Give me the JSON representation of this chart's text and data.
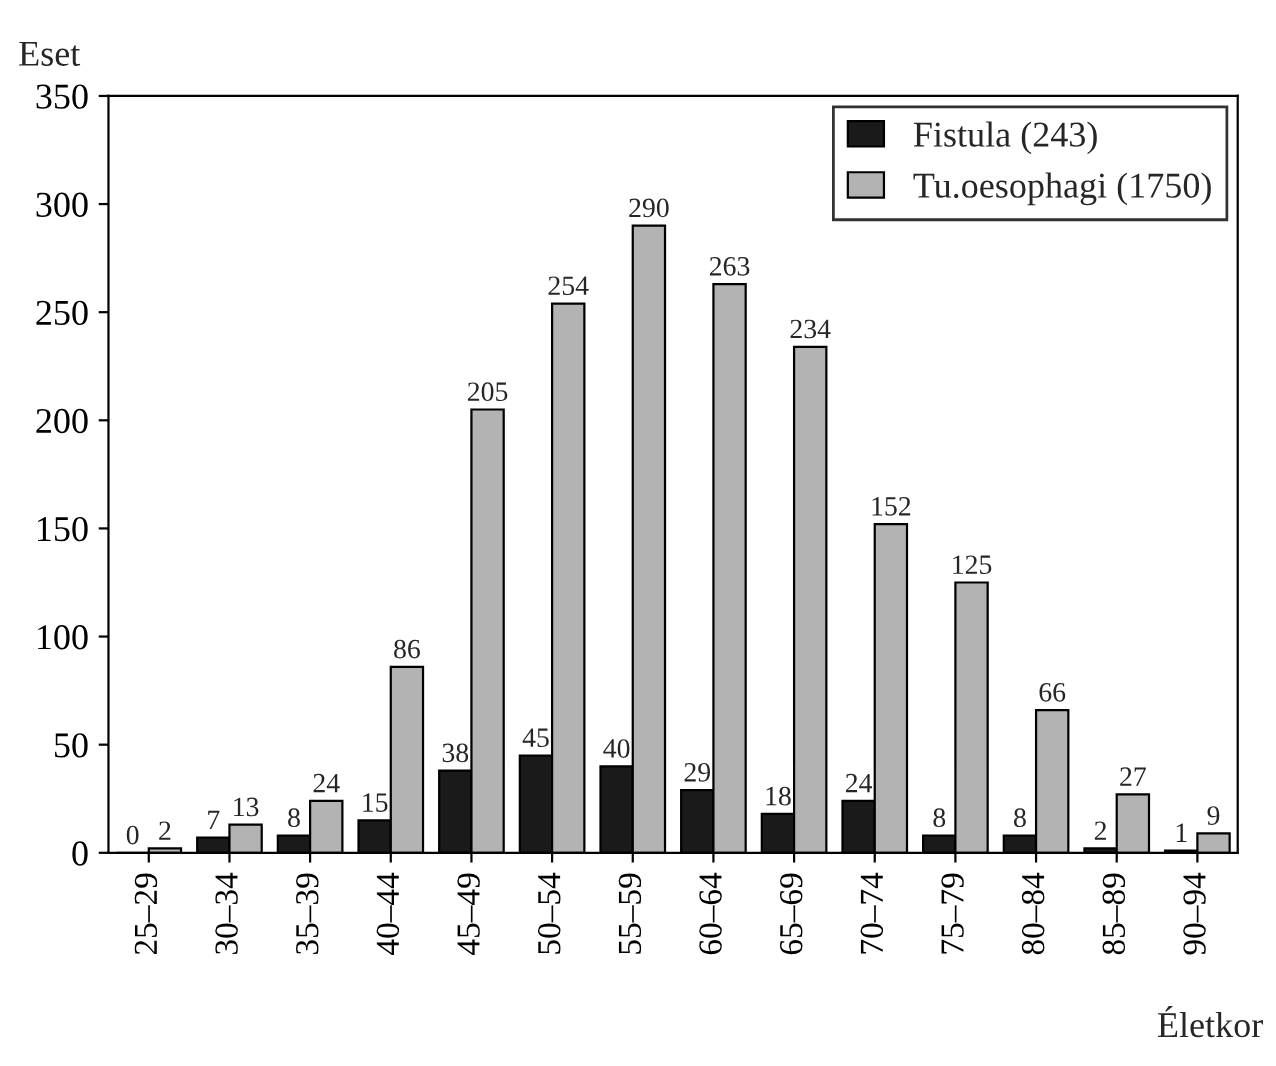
{
  "chart_data": {
    "type": "bar",
    "xlabel": "Életkor",
    "ylabel": "Eset",
    "categories": [
      "25–29",
      "30–34",
      "35–39",
      "40–44",
      "45–49",
      "50–54",
      "55–59",
      "60–64",
      "65–69",
      "70–74",
      "75–79",
      "80–84",
      "85–89",
      "90–94"
    ],
    "series": [
      {
        "name": "Fistula (243)",
        "color": "#1a1a1a",
        "values": [
          0,
          7,
          8,
          15,
          38,
          45,
          40,
          29,
          18,
          24,
          8,
          8,
          2,
          1
        ]
      },
      {
        "name": "Tu.oesophagi (1750)",
        "color": "#b3b3b3",
        "values": [
          2,
          13,
          24,
          86,
          205,
          254,
          290,
          263,
          234,
          152,
          125,
          66,
          27,
          9
        ]
      }
    ],
    "ylim": [
      0,
      350
    ],
    "yticks": [
      0,
      50,
      100,
      150,
      200,
      250,
      300,
      350
    ],
    "data_labels": true,
    "legend": "top right",
    "grid": false
  }
}
